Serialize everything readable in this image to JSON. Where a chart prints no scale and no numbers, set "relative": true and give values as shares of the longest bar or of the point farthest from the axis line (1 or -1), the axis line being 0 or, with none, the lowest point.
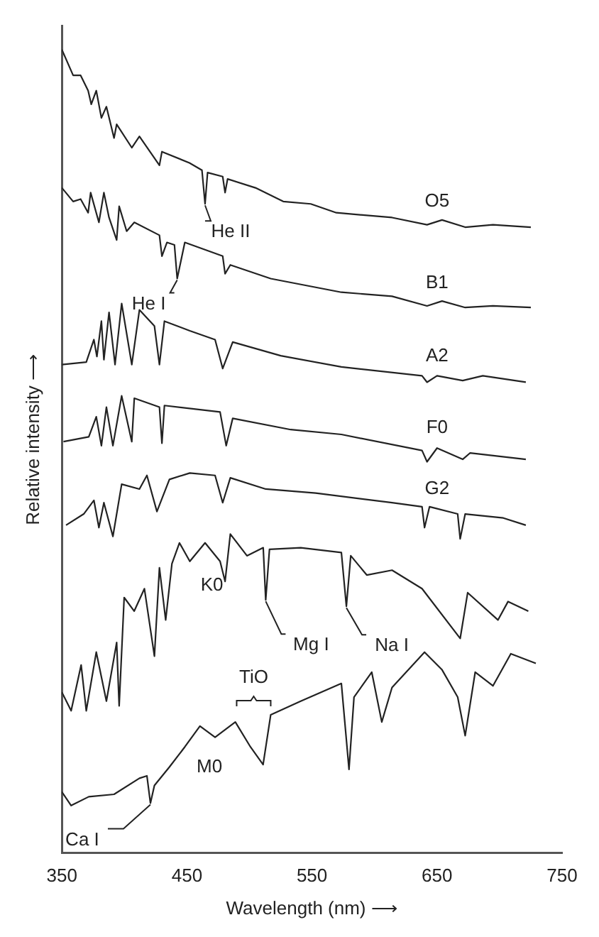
{
  "chart_data": {
    "type": "line",
    "relative": true,
    "xlabel": "Wavelength (nm) ⟶",
    "ylabel": "Relative intensity ⟶",
    "xlim": [
      350,
      750
    ],
    "xticks": [
      350,
      450,
      550,
      650,
      750
    ],
    "series": [
      {
        "name": "O5",
        "color": "#222222",
        "x": [
          350,
          359,
          365,
          371,
          373.5,
          377.5,
          381.6,
          385.6,
          391.7,
          393.8,
          405.9,
          412,
          428,
          430,
          452,
          462,
          464.5,
          466.5,
          478.6,
          480.5,
          482.5,
          504.8,
          527,
          549,
          569.5,
          614,
          642,
          654,
          672.5,
          694.7,
          725
        ],
        "values": [
          1.0,
          0.968,
          0.968,
          0.949,
          0.932,
          0.949,
          0.915,
          0.929,
          0.89,
          0.907,
          0.878,
          0.892,
          0.856,
          0.873,
          0.859,
          0.85,
          0.808,
          0.847,
          0.842,
          0.822,
          0.839,
          0.828,
          0.811,
          0.808,
          0.797,
          0.791,
          0.782,
          0.788,
          0.779,
          0.782,
          0.779
        ]
      },
      {
        "name": "B1",
        "color": "#222222",
        "x": [
          350,
          359,
          365,
          371,
          373,
          379.6,
          383.6,
          387.7,
          393.8,
          395.8,
          401.8,
          407.9,
          428,
          430,
          434,
          440,
          442.2,
          448.3,
          478.6,
          480.5,
          484.7,
          517,
          573.5,
          614,
          642,
          654,
          672.5,
          694.7,
          725
        ],
        "values": [
          0.828,
          0.811,
          0.814,
          0.797,
          0.822,
          0.785,
          0.822,
          0.791,
          0.763,
          0.805,
          0.774,
          0.785,
          0.769,
          0.743,
          0.76,
          0.757,
          0.715,
          0.76,
          0.743,
          0.721,
          0.732,
          0.715,
          0.698,
          0.693,
          0.681,
          0.687,
          0.679,
          0.681,
          0.679
        ]
      },
      {
        "name": "A2",
        "color": "#222222",
        "x": [
          350,
          369.5,
          375.6,
          378,
          381.6,
          383.6,
          387.7,
          392.5,
          397.8,
          405.9,
          412,
          424,
          428,
          432,
          452.3,
          472.5,
          478.6,
          486.6,
          525,
          573.5,
          638,
          642,
          650,
          670.5,
          686.6,
          721
        ],
        "values": [
          0.608,
          0.611,
          0.639,
          0.618,
          0.662,
          0.614,
          0.673,
          0.608,
          0.684,
          0.608,
          0.676,
          0.656,
          0.608,
          0.662,
          0.65,
          0.639,
          0.603,
          0.636,
          0.619,
          0.605,
          0.594,
          0.586,
          0.594,
          0.588,
          0.594,
          0.586
        ]
      },
      {
        "name": "F0",
        "color": "#222222",
        "x": [
          351.3,
          371.5,
          377.5,
          381.6,
          385.6,
          390.8,
          397.8,
          405.9,
          407.9,
          428,
          430,
          432,
          476.5,
          481.4,
          486.6,
          533,
          573.5,
          638,
          642,
          650,
          670.5,
          676.5,
          721
        ],
        "values": [
          0.512,
          0.518,
          0.543,
          0.507,
          0.555,
          0.507,
          0.569,
          0.512,
          0.566,
          0.555,
          0.51,
          0.557,
          0.549,
          0.507,
          0.541,
          0.527,
          0.521,
          0.501,
          0.487,
          0.504,
          0.49,
          0.498,
          0.49
        ]
      },
      {
        "name": "G2",
        "color": "#222222",
        "x": [
          353.3,
          367.5,
          375.6,
          379.6,
          383.6,
          390.8,
          397.8,
          412,
          418,
          426,
          436,
          452.3,
          472.5,
          478.6,
          484.7,
          513,
          553,
          614,
          638,
          640,
          644,
          666.5,
          668.5,
          672.5,
          703,
          721
        ],
        "values": [
          0.408,
          0.422,
          0.439,
          0.405,
          0.436,
          0.394,
          0.459,
          0.453,
          0.47,
          0.425,
          0.465,
          0.473,
          0.47,
          0.436,
          0.467,
          0.453,
          0.448,
          0.436,
          0.431,
          0.405,
          0.431,
          0.422,
          0.391,
          0.422,
          0.417,
          0.408
        ]
      },
      {
        "name": "K0",
        "color": "#222222",
        "x": [
          350,
          357.4,
          365.4,
          369.5,
          377.5,
          385.6,
          393.8,
          395.8,
          399.8,
          407.8,
          416,
          424,
          428,
          433,
          438,
          444,
          452.3,
          464.5,
          476.5,
          480.5,
          484.7,
          498,
          511,
          513,
          516,
          541,
          573.5,
          577.5,
          581,
          593.8,
          614,
          638,
          668.5,
          674.5,
          698.7,
          706.8,
          723
        ],
        "values": [
          0.2,
          0.177,
          0.234,
          0.177,
          0.25,
          0.189,
          0.262,
          0.183,
          0.318,
          0.301,
          0.329,
          0.245,
          0.355,
          0.29,
          0.36,
          0.386,
          0.363,
          0.386,
          0.363,
          0.338,
          0.397,
          0.37,
          0.38,
          0.315,
          0.378,
          0.38,
          0.374,
          0.307,
          0.37,
          0.346,
          0.352,
          0.329,
          0.267,
          0.324,
          0.29,
          0.313,
          0.301
        ]
      },
      {
        "name": "M0",
        "color": "#222222",
        "x": [
          350,
          357.4,
          371.5,
          391.7,
          412,
          418,
          420.8,
          424,
          436,
          448.3,
          460.4,
          472.5,
          488.7,
          500.8,
          510.9,
          517,
          541,
          573.5,
          579.6,
          583.6,
          597.8,
          605.8,
          614,
          640,
          654,
          666.5,
          672.5,
          680.5,
          694.7,
          709,
          729
        ],
        "values": [
          0.076,
          0.059,
          0.07,
          0.073,
          0.093,
          0.096,
          0.062,
          0.084,
          0.107,
          0.132,
          0.158,
          0.144,
          0.163,
          0.132,
          0.11,
          0.172,
          0.189,
          0.211,
          0.104,
          0.194,
          0.225,
          0.163,
          0.206,
          0.25,
          0.228,
          0.194,
          0.146,
          0.225,
          0.208,
          0.248,
          0.236
        ]
      }
    ],
    "annotations": [
      {
        "text": "He II",
        "x": 464.5,
        "y": 0.808
      },
      {
        "text": "He I",
        "x": 442.2,
        "y": 0.715
      },
      {
        "text": "Mg I",
        "x": 513,
        "y": 0.315
      },
      {
        "text": "Na I",
        "x": 577.5,
        "y": 0.307
      },
      {
        "text": "TiO",
        "x": 517,
        "y": 0.172
      },
      {
        "text": "Ca I",
        "x": 420.8,
        "y": 0.062
      }
    ]
  }
}
